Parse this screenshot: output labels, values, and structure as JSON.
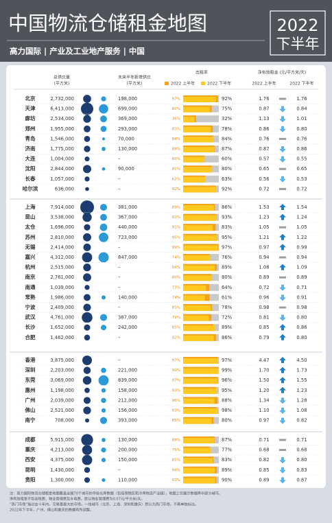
{
  "header": {
    "title": "中国物流仓储租金地图",
    "year": "2022",
    "period": "下半年",
    "subtitle": "高力国际 | 产业及工业地产服务 | 中国"
  },
  "columns": {
    "supply": [
      "总供应量",
      "(平方米)"
    ],
    "new_supply": [
      "未来半年新增供应",
      "(平方米)"
    ],
    "occupancy": "出租率",
    "rent": "净有效租金 (元/平方米/天)",
    "h1": "2022 上半年",
    "h2": "2022 下半年"
  },
  "groups": [
    [
      {
        "city": "北京",
        "supply": 2732000,
        "supply_label": "2,732,000",
        "new": 198000,
        "new_label": "198,000",
        "occupancy": [
          97,
          92
        ],
        "occupancy_labels": [
          "97%",
          "92%"
        ],
        "rent": [
          1.76,
          1.76
        ],
        "rent_labels": [
          "1.76",
          "1.76"
        ]
      },
      {
        "city": "天津",
        "supply": 6413000,
        "supply_label": "6,413,000",
        "new": 699000,
        "new_label": "699,000",
        "occupancy": [
          80,
          75
        ],
        "occupancy_labels": [
          "80%",
          "75%"
        ],
        "rent": [
          0.87,
          0.84
        ],
        "rent_labels": [
          "0.87",
          "0.84"
        ]
      },
      {
        "city": "廊坊",
        "supply": 2534000,
        "supply_label": "2,534,000",
        "new": 369000,
        "new_label": "369,000",
        "occupancy": [
          36,
          32
        ],
        "occupancy_labels": [
          "36%",
          "32%"
        ],
        "rent": [
          1.13,
          1.01
        ],
        "rent_labels": [
          "1.13",
          "1.01"
        ]
      },
      {
        "city": "郑州",
        "supply": 1955000,
        "supply_label": "1,955,000",
        "new": 293000,
        "new_label": "293,000",
        "occupancy": [
          83,
          78
        ],
        "occupancy_labels": [
          "83%",
          "78%"
        ],
        "rent": [
          0.86,
          0.8
        ],
        "rent_labels": [
          "0.86",
          "0.80"
        ]
      },
      {
        "city": "青岛",
        "supply": 1546000,
        "supply_label": "1,546,000",
        "new": 70000,
        "new_label": "70,000",
        "occupancy": [
          84,
          84
        ],
        "occupancy_labels": [
          "84%",
          "84%"
        ],
        "rent": [
          0.76,
          0.76
        ],
        "rent_labels": [
          "0.76",
          "0.76"
        ]
      },
      {
        "city": "济南",
        "supply": 1775000,
        "supply_label": "1,775,000",
        "new": 130000,
        "new_label": "130,000",
        "occupancy": [
          88,
          87
        ],
        "occupancy_labels": [
          "88%",
          "87%"
        ],
        "rent": [
          0.87,
          0.86
        ],
        "rent_labels": [
          "0.87",
          "0.86"
        ]
      },
      {
        "city": "大连",
        "supply": 1004000,
        "supply_label": "1,004,000",
        "new": null,
        "new_label": "–",
        "occupancy": [
          60,
          60
        ],
        "occupancy_labels": [
          "60%",
          "60%"
        ],
        "rent": [
          0.57,
          0.55
        ],
        "rent_labels": [
          "0.57",
          "0.55"
        ]
      },
      {
        "city": "沈阳",
        "supply": 2844000,
        "supply_label": "2,844,000",
        "new": 90000,
        "new_label": "90,000",
        "occupancy": [
          80,
          80
        ],
        "occupancy_labels": [
          "80%",
          "80%"
        ],
        "rent": [
          0.65,
          0.65
        ],
        "rent_labels": [
          "0.65",
          "0.65"
        ]
      },
      {
        "city": "长春",
        "supply": 1057000,
        "supply_label": "1,057,000",
        "new": null,
        "new_label": "–",
        "occupancy": [
          62,
          63
        ],
        "occupancy_labels": [
          "62%",
          "63%"
        ],
        "rent": [
          0.56,
          0.53
        ],
        "rent_labels": [
          "0.56",
          "0.53"
        ]
      },
      {
        "city": "哈尔滨",
        "supply": 636000,
        "supply_label": "636,000",
        "new": null,
        "new_label": "–",
        "occupancy": [
          92,
          92
        ],
        "occupancy_labels": [
          "92%",
          "92%"
        ],
        "rent": [
          0.72,
          0.72
        ],
        "rent_labels": [
          "0.72",
          "0.72"
        ]
      }
    ],
    [
      {
        "city": "上海",
        "supply": 7914000,
        "supply_label": "7,914,000",
        "new": 381000,
        "new_label": "381,000",
        "occupancy": [
          89,
          86
        ],
        "occupancy_labels": [
          "89%",
          "86%"
        ],
        "rent": [
          1.53,
          1.54
        ],
        "rent_labels": [
          "1.53",
          "1.54"
        ]
      },
      {
        "city": "昆山",
        "supply": 3538000,
        "supply_label": "3,538,000",
        "new": 367000,
        "new_label": "367,000",
        "occupancy": [
          93,
          93
        ],
        "occupancy_labels": [
          "93%",
          "93%"
        ],
        "rent": [
          1.23,
          1.24
        ],
        "rent_labels": [
          "1.23",
          "1.24"
        ]
      },
      {
        "city": "太仓",
        "supply": 1696000,
        "supply_label": "1,696,000",
        "new": 440000,
        "new_label": "440,000",
        "occupancy": [
          91,
          83
        ],
        "occupancy_labels": [
          "91%",
          "83%"
        ],
        "rent": [
          1.05,
          1.05
        ],
        "rent_labels": [
          "1.05",
          "1.05"
        ]
      },
      {
        "city": "苏州",
        "supply": 2810000,
        "supply_label": "2,810,000",
        "new": 723000,
        "new_label": "723,000",
        "occupancy": [
          95,
          95
        ],
        "occupancy_labels": [
          "95%",
          "95%"
        ],
        "rent": [
          1.21,
          1.22
        ],
        "rent_labels": [
          "1.21",
          "1.22"
        ]
      },
      {
        "city": "无锡",
        "supply": 2414000,
        "supply_label": "2,414,000",
        "new": null,
        "new_label": "–",
        "occupancy": [
          99,
          97
        ],
        "occupancy_labels": [
          "99%",
          "97%"
        ],
        "rent": [
          0.97,
          0.99
        ],
        "rent_labels": [
          "0.97",
          "0.99"
        ]
      },
      {
        "city": "嘉兴",
        "supply": 4312000,
        "supply_label": "4,312,000",
        "new": 847000,
        "new_label": "847,000",
        "occupancy": [
          74,
          76
        ],
        "occupancy_labels": [
          "74%",
          "76%"
        ],
        "rent": [
          0.94,
          0.94
        ],
        "rent_labels": [
          "0.94",
          "0.94"
        ]
      },
      {
        "city": "杭州",
        "supply": 2515000,
        "supply_label": "2,515,000",
        "new": null,
        "new_label": "–",
        "occupancy": [
          94,
          89
        ],
        "occupancy_labels": [
          "94%",
          "89%"
        ],
        "rent": [
          1.08,
          1.09
        ],
        "rent_labels": [
          "1.08",
          "1.09"
        ]
      },
      {
        "city": "南京",
        "supply": 2761000,
        "supply_label": "2,761,000",
        "new": null,
        "new_label": "–",
        "occupancy": [
          80,
          80
        ],
        "occupancy_labels": [
          "80%",
          "80%"
        ],
        "rent": [
          0.89,
          0.89
        ],
        "rent_labels": [
          "0.89",
          "0.89"
        ]
      },
      {
        "city": "南通",
        "supply": 1039000,
        "supply_label": "1,039,000",
        "new": null,
        "new_label": "–",
        "occupancy": [
          73,
          64
        ],
        "occupancy_labels": [
          "73%",
          "64%"
        ],
        "rent": [
          0.72,
          0.71
        ],
        "rent_labels": [
          "0.72",
          "0.71"
        ]
      },
      {
        "city": "常熟",
        "supply": 1986000,
        "supply_label": "1,986,000",
        "new": 140000,
        "new_label": "140,000",
        "occupancy": [
          74,
          61
        ],
        "occupancy_labels": [
          "74%",
          "61%"
        ],
        "rent": [
          0.96,
          0.91
        ],
        "rent_labels": [
          "0.96",
          "0.91"
        ]
      },
      {
        "city": "宁波",
        "supply": 2409000,
        "supply_label": "2,409,000",
        "new": null,
        "new_label": "–",
        "occupancy": [
          81,
          78
        ],
        "occupancy_labels": [
          "81%",
          "78%"
        ],
        "rent": [
          0.98,
          0.98
        ],
        "rent_labels": [
          "0.98",
          "0.98"
        ]
      },
      {
        "city": "武汉",
        "supply": 4761000,
        "supply_label": "4,761,000",
        "new": 387000,
        "new_label": "387,000",
        "occupancy": [
          79,
          72
        ],
        "occupancy_labels": [
          "79%",
          "72%"
        ],
        "rent": [
          0.81,
          0.8
        ],
        "rent_labels": [
          "0.81",
          "0.80"
        ]
      },
      {
        "city": "长沙",
        "supply": 1652000,
        "supply_label": "1,652,000",
        "new": 242000,
        "new_label": "242,000",
        "occupancy": [
          85,
          89
        ],
        "occupancy_labels": [
          "85%",
          "89%"
        ],
        "rent": [
          0.85,
          0.86
        ],
        "rent_labels": [
          "0.85",
          "0.86"
        ]
      },
      {
        "city": "合肥",
        "supply": 1462000,
        "supply_label": "1,462,000",
        "new": null,
        "new_label": "–",
        "occupancy": [
          92,
          86
        ],
        "occupancy_labels": [
          "92%",
          "86%"
        ],
        "rent": [
          0.79,
          0.8
        ],
        "rent_labels": [
          "0.79",
          "0.80"
        ]
      }
    ],
    [
      {
        "city": "香港",
        "supply": 3875000,
        "supply_label": "3,875,000",
        "new": null,
        "new_label": "–",
        "occupancy": [
          97,
          97
        ],
        "occupancy_labels": [
          "97%",
          "97%"
        ],
        "rent": [
          4.47,
          4.5
        ],
        "rent_labels": [
          "4.47",
          "4.50"
        ]
      },
      {
        "city": "深圳",
        "supply": 2203000,
        "supply_label": "2,203,000",
        "new": 221000,
        "new_label": "221,000",
        "occupancy": [
          99,
          99
        ],
        "occupancy_labels": [
          "99%",
          "99%"
        ],
        "rent": [
          1.7,
          1.73
        ],
        "rent_labels": [
          "1.70",
          "1.73"
        ]
      },
      {
        "city": "东莞",
        "supply": 3069000,
        "supply_label": "3,069,000",
        "new": 839000,
        "new_label": "839,000",
        "occupancy": [
          97,
          96
        ],
        "occupancy_labels": [
          "97%",
          "96%"
        ],
        "rent": [
          1.5,
          1.55
        ],
        "rent_labels": [
          "1.50",
          "1.55"
        ]
      },
      {
        "city": "惠州",
        "supply": 1198000,
        "supply_label": "1,198,000",
        "new": 158000,
        "new_label": "158,000",
        "occupancy": [
          93,
          95
        ],
        "occupancy_labels": [
          "93%",
          "95%"
        ],
        "rent": [
          1.2,
          1.23
        ],
        "rent_labels": [
          "1.20",
          "1.23"
        ]
      },
      {
        "city": "广州",
        "supply": 2039000,
        "supply_label": "2,039,000",
        "new": 212000,
        "new_label": "212,000",
        "occupancy": [
          96,
          88
        ],
        "occupancy_labels": [
          "96%",
          "88%"
        ],
        "rent": [
          1.34,
          1.28
        ],
        "rent_labels": [
          "1.34",
          "1.28"
        ]
      },
      {
        "city": "佛山",
        "supply": 2521000,
        "supply_label": "2,521,000",
        "new": 156000,
        "new_label": "156,000",
        "occupancy": [
          93,
          98
        ],
        "occupancy_labels": [
          "93%",
          "98%"
        ],
        "rent": [
          1.1,
          1.08
        ],
        "rent_labels": [
          "1.10",
          "1.08"
        ]
      },
      {
        "city": "南宁",
        "supply": 708000,
        "supply_label": "708,000",
        "new": 393000,
        "new_label": "393,000",
        "occupancy": [
          85,
          80
        ],
        "occupancy_labels": [
          "85%",
          "80%"
        ],
        "rent": [
          0.97,
          0.82
        ],
        "rent_labels": [
          "0.97",
          "0.82"
        ]
      }
    ],
    [
      {
        "city": "成都",
        "supply": 5915000,
        "supply_label": "5,915,000",
        "new": 130000,
        "new_label": "130,000",
        "occupancy": [
          88,
          87
        ],
        "occupancy_labels": [
          "88%",
          "87%"
        ],
        "rent": [
          0.71,
          0.71
        ],
        "rent_labels": [
          "0.71",
          "0.71"
        ]
      },
      {
        "city": "重庆",
        "supply": 4213000,
        "supply_label": "4,213,000",
        "new": 200000,
        "new_label": "200,000",
        "occupancy": [
          75,
          77
        ],
        "occupancy_labels": [
          "75%",
          "77%"
        ],
        "rent": [
          0.68,
          0.68
        ],
        "rent_labels": [
          "0.68",
          "0.68"
        ]
      },
      {
        "city": "西安",
        "supply": 4375000,
        "supply_label": "4,375,000",
        "new": 150000,
        "new_label": "150,000",
        "occupancy": [
          85,
          83
        ],
        "occupancy_labels": [
          "85%",
          "83%"
        ],
        "rent": [
          0.82,
          0.8
        ],
        "rent_labels": [
          "0.82",
          "0.80"
        ]
      },
      {
        "city": "昆明",
        "supply": 1430000,
        "supply_label": "1,430,000",
        "new": null,
        "new_label": "–",
        "occupancy": [
          94,
          89
        ],
        "occupancy_labels": [
          "94%",
          "89%"
        ],
        "rent": [
          0.85,
          0.83
        ],
        "rent_labels": [
          "0.85",
          "0.83"
        ]
      },
      {
        "city": "贵阳",
        "supply": 1300000,
        "supply_label": "1,300,000",
        "new": 110000,
        "new_label": "110,000",
        "occupancy": [
          93,
          90
        ],
        "occupancy_labels": [
          "93%",
          "90%"
        ],
        "rent": [
          0.89,
          0.87
        ],
        "rent_labels": [
          "0.89",
          "0.87"
        ]
      }
    ]
  ],
  "footnote": [
    "注：高力国际物流仓储租金地图覆盖全国70个城市的甲级仓库数据（包括保税区和冷库物流产业园），地图上仅展示数据库中部分城市。",
    "净有效租金不包含税费、物业管理费及水电费，默认物业管理费为0.07元/平方米/天。",
    "“热门市场”指过去十年内，交易量最大的市场，一线城市（北京、上海、深圳和重庆）默认为热门市场，不再单独标出。",
    "2022年下半年，广州、佛山和重庆的数据有所调整。"
  ]
}
